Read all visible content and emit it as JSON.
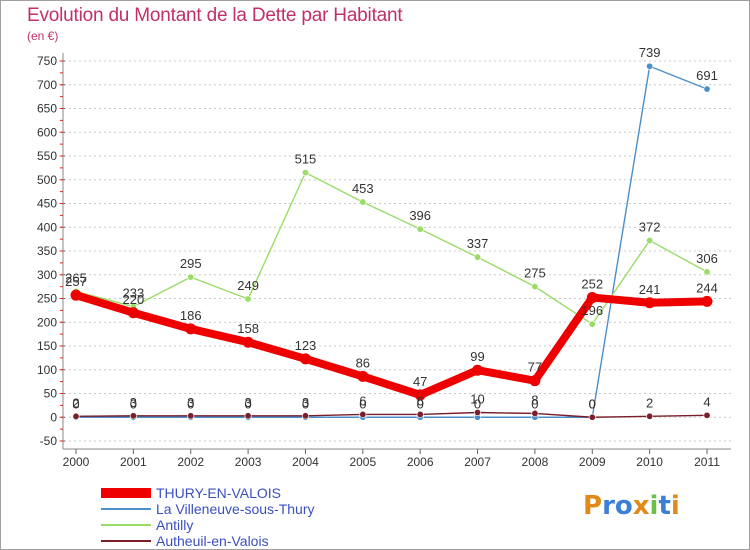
{
  "title": "Evolution du Montant de la Dette par Habitant",
  "subtitle": "(en €)",
  "brand": "Proxiti",
  "colors": {
    "title": "#c0306a",
    "axis_text": "#333333",
    "grid": "#c8c8c8",
    "legend_text": "#3a4fc1"
  },
  "chart_data": {
    "type": "line",
    "x": [
      "2000",
      "2001",
      "2002",
      "2003",
      "2004",
      "2005",
      "2006",
      "2007",
      "2008",
      "2009",
      "2010",
      "2011"
    ],
    "ylim": [
      -50,
      750
    ],
    "yticks": [
      -50,
      0,
      50,
      100,
      150,
      200,
      250,
      300,
      350,
      400,
      450,
      500,
      550,
      600,
      650,
      700,
      750
    ],
    "grid": "horizontal",
    "legend_position": "bottom-left",
    "series": [
      {
        "name": "THURY-EN-VALOIS",
        "color": "#ee0000",
        "emphasis": true,
        "values": [
          257,
          220,
          186,
          158,
          123,
          86,
          47,
          99,
          77,
          252,
          241,
          244
        ]
      },
      {
        "name": "La Villeneuve-sous-Thury",
        "color": "#4a8fcc",
        "values": [
          0,
          0,
          0,
          0,
          0,
          0,
          0,
          0,
          0,
          0,
          739,
          691
        ]
      },
      {
        "name": "Antilly",
        "color": "#99dd66",
        "values": [
          265,
          233,
          295,
          249,
          515,
          453,
          396,
          337,
          275,
          196,
          372,
          306
        ]
      },
      {
        "name": "Autheuil-en-Valois",
        "color": "#7a1f2a",
        "values": [
          2,
          3,
          3,
          3,
          3,
          6,
          6,
          10,
          8,
          0,
          2,
          4
        ]
      }
    ],
    "data_labels": {
      "THURY-EN-VALOIS": [
        "257",
        "220",
        "186",
        "158",
        "123",
        "86",
        "47",
        "99",
        "77",
        "252",
        "241",
        "244"
      ],
      "La Villeneuve-sous-Thury": [
        "0",
        "0",
        "0",
        "0",
        "0",
        "0",
        "0",
        "0",
        "0",
        "0",
        "739",
        "691"
      ],
      "Antilly": [
        "265",
        "233",
        "295",
        "249",
        "515",
        "453",
        "396",
        "337",
        "275",
        "196",
        "372",
        "306"
      ],
      "Autheuil-en-Valois": [
        "2",
        "3",
        "3",
        "3",
        "3",
        "6",
        "6",
        "10",
        "8",
        "0",
        "2",
        "4"
      ]
    }
  }
}
